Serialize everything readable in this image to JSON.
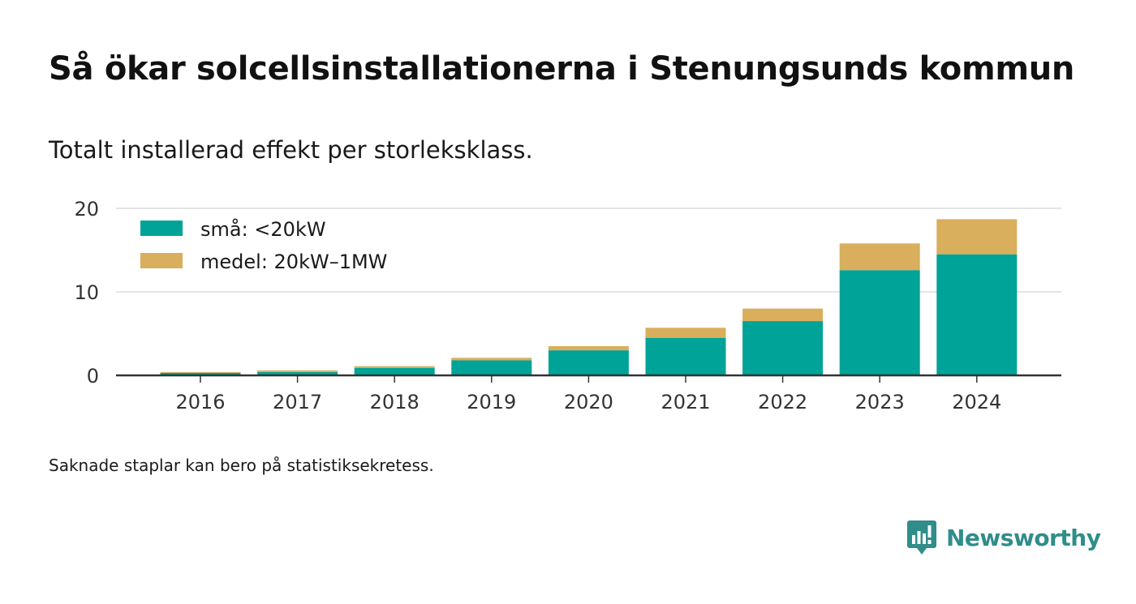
{
  "title": "Så ökar solcellsinstallationerna i Stenungsunds kommun",
  "subtitle": "Totalt installerad effekt per storleksklass.",
  "footnote": "Saknade staplar kan bero på statistiksekretess.",
  "brand": {
    "name": "Newsworthy",
    "icon": "newsworthy-logo-icon",
    "color": "#2f8d8a"
  },
  "chart_data": {
    "type": "bar",
    "stacked": true,
    "title": "",
    "xlabel": "",
    "ylabel": "",
    "ylim": [
      0,
      20
    ],
    "yticks": [
      0,
      10,
      20
    ],
    "grid": true,
    "legend_position": "top-left",
    "categories": [
      "2016",
      "2017",
      "2018",
      "2019",
      "2020",
      "2021",
      "2022",
      "2023",
      "2024"
    ],
    "series": [
      {
        "name": "små: <20kW",
        "color": "#00a398",
        "values": [
          0.3,
          0.4,
          0.9,
          1.8,
          3.0,
          4.5,
          6.5,
          12.6,
          14.5
        ]
      },
      {
        "name": "medel: 20kW–1MW",
        "color": "#d9ae5c",
        "values": [
          0.1,
          0.2,
          0.2,
          0.3,
          0.5,
          1.2,
          1.5,
          3.2,
          4.2
        ]
      }
    ]
  }
}
